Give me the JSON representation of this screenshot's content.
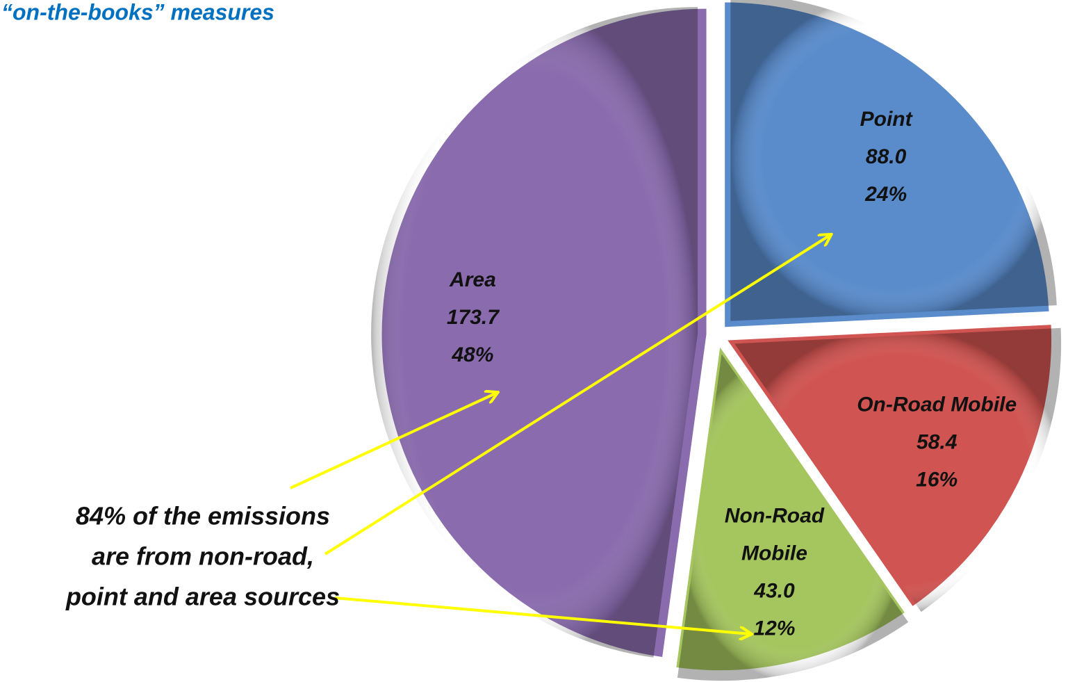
{
  "chart_data": {
    "type": "pie",
    "title": "“on-the-books” measures",
    "categories": [
      "Point",
      "On-Road Mobile",
      "Non-Road Mobile",
      "Area"
    ],
    "category_lines": [
      [
        "Point"
      ],
      [
        "On-Road Mobile"
      ],
      [
        "Non-Road",
        "Mobile"
      ],
      [
        "Area"
      ]
    ],
    "values": [
      88.0,
      58.4,
      43.0,
      173.7
    ],
    "value_labels": [
      "88.0",
      "58.4",
      "43.0",
      "173.7"
    ],
    "percents": [
      24,
      16,
      12,
      48
    ],
    "percent_labels": [
      "24%",
      "16%",
      "12%",
      "48%"
    ],
    "colors": [
      "#5a8ccc",
      "#d05451",
      "#a5c55f",
      "#8a6cae"
    ],
    "annotation": [
      "84% of the emissions",
      "are from non-road,",
      "point and area sources"
    ]
  }
}
